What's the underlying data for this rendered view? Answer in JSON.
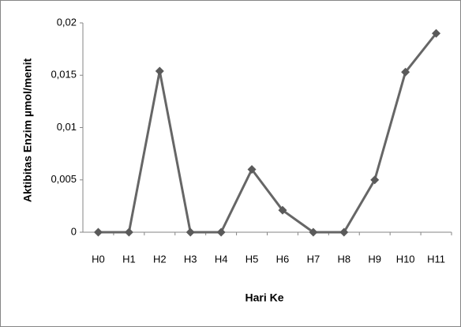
{
  "chart_data": {
    "type": "line",
    "y_label": "Aktibitas Enzim µmol/menit",
    "x_label": "Hari Ke",
    "categories": [
      "H0",
      "H1",
      "H2",
      "H3",
      "H4",
      "H5",
      "H6",
      "H7",
      "H8",
      "H9",
      "H10",
      "H11"
    ],
    "values": [
      0,
      0,
      0.0154,
      0,
      0,
      0.006,
      0.0021,
      0,
      0,
      0.005,
      0.0153,
      0.019
    ],
    "color": "#666666",
    "marker_color": "#5a5a5a",
    "ylim": [
      0,
      0.02
    ],
    "yticks": [
      0,
      {
        "value": 0.005,
        "label": "0,005"
      },
      {
        "value": 0.01,
        "label": "0,01"
      },
      {
        "value": 0.015,
        "label": "0,015"
      },
      {
        "value": 0.02,
        "label": "0,02"
      }
    ]
  }
}
